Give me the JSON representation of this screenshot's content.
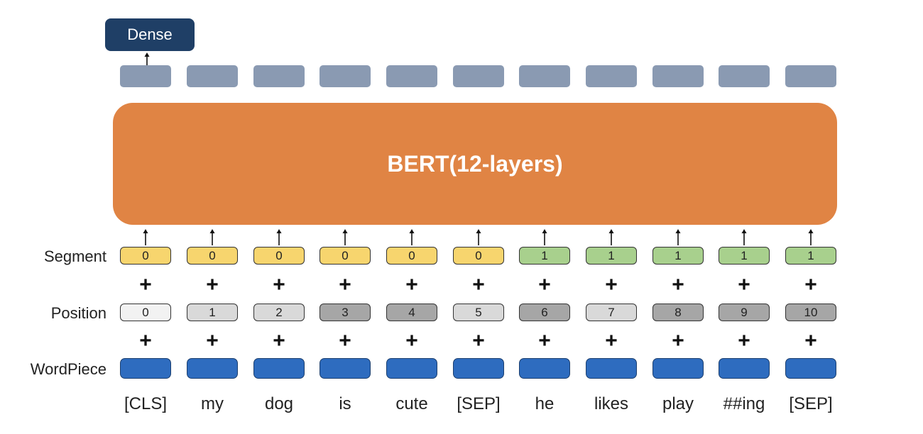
{
  "dense_label": "Dense",
  "model_label": "BERT(12-layers)",
  "row_labels": {
    "segment": "Segment",
    "position": "Position",
    "wordpiece": "WordPiece"
  },
  "plus_sign": "+",
  "tokens": [
    "[CLS]",
    "my",
    "dog",
    "is",
    "cute",
    "[SEP]",
    "he",
    "likes",
    "play",
    "##ing",
    "[SEP]"
  ],
  "segments": [
    "0",
    "0",
    "0",
    "0",
    "0",
    "0",
    "1",
    "1",
    "1",
    "1",
    "1"
  ],
  "positions": [
    "0",
    "1",
    "2",
    "3",
    "4",
    "5",
    "6",
    "7",
    "8",
    "9",
    "10"
  ],
  "colors": {
    "dense": "#1f3f66",
    "output": "#8a9ab2",
    "model": "#e08444",
    "segment_0": "#f7d56e",
    "segment_1": "#a8d08d",
    "wordpiece": "#2e6cbf",
    "position_shades": [
      "#f2f2f2",
      "#d9d9d9",
      "#d9d9d9",
      "#a6a6a6",
      "#a6a6a6",
      "#d9d9d9",
      "#a6a6a6",
      "#d9d9d9",
      "#a6a6a6",
      "#a6a6a6",
      "#a6a6a6"
    ]
  }
}
